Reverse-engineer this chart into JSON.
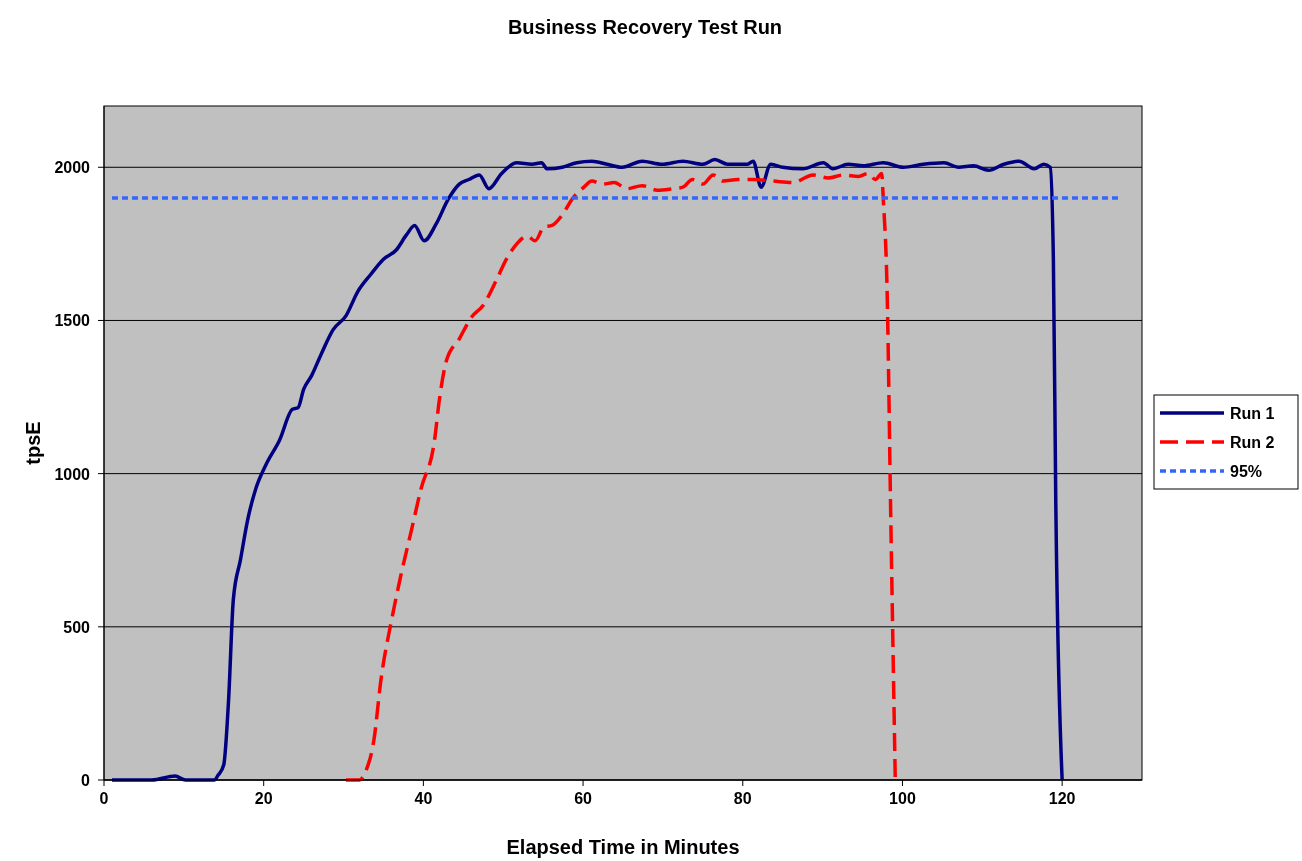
{
  "chart_data": {
    "type": "line",
    "title": "Business Recovery Test Run",
    "xlabel": "Elapsed Time in Minutes",
    "ylabel": "tpsE",
    "xlim": [
      0,
      130
    ],
    "xticks": [
      0,
      20,
      40,
      60,
      80,
      100,
      120
    ],
    "ylim": [
      0,
      2200
    ],
    "yticks": [
      0,
      500,
      1000,
      1500,
      2000
    ],
    "grid": "y",
    "legend": "right",
    "series": [
      {
        "name": "Run 1",
        "color": "#000080",
        "line_style": "solid",
        "x": [
          1,
          6,
          8.9,
          10.2,
          13.8,
          14.3,
          15,
          15.6,
          16.2,
          17.1,
          18,
          19,
          20.3,
          22,
          23.6,
          24.3,
          25,
          26,
          27.2,
          28.7,
          30.3,
          31.8,
          33.4,
          35,
          36.6,
          37.9,
          38.9,
          40.1,
          41.6,
          43.1,
          44.5,
          45.7,
          47,
          48.2,
          49.8,
          51.7,
          53.6,
          54.8,
          55.5,
          57.4,
          59.2,
          61.1,
          63,
          64.9,
          67.4,
          69.9,
          72.5,
          75,
          76.5,
          78.1,
          80.6,
          81.3,
          82.3,
          83.5,
          85,
          87.5,
          90.1,
          91.3,
          93.2,
          95.1,
          97.6,
          100.1,
          102.6,
          105.2,
          107,
          108.9,
          110.8,
          112.7,
          114.6,
          116.5,
          117.7,
          118.5,
          118.9,
          119.2,
          120
        ],
        "values": [
          0,
          0,
          13,
          0,
          0,
          16,
          50,
          260,
          590,
          720,
          850,
          950,
          1030,
          1110,
          1210,
          1215,
          1275,
          1320,
          1390,
          1470,
          1515,
          1595,
          1650,
          1700,
          1730,
          1780,
          1810,
          1760,
          1815,
          1895,
          1945,
          1960,
          1975,
          1930,
          1980,
          2015,
          2010,
          2015,
          1995,
          2000,
          2015,
          2020,
          2010,
          2000,
          2020,
          2010,
          2020,
          2010,
          2025,
          2010,
          2010,
          2020,
          1935,
          2010,
          2000,
          1995,
          2015,
          1995,
          2010,
          2005,
          2015,
          2000,
          2010,
          2015,
          2000,
          2005,
          1990,
          2010,
          2020,
          1995,
          2010,
          2000,
          1700,
          915,
          0
        ]
      },
      {
        "name": "Run 2",
        "color": "#ff0000",
        "line_style": "dashed",
        "x": [
          30.3,
          32,
          32.8,
          33.8,
          34.7,
          36,
          37.2,
          38.5,
          39.7,
          41.4,
          42,
          42.9,
          44.5,
          46,
          47.5,
          49.2,
          50.4,
          51.7,
          53,
          54,
          55.1,
          56.1,
          57.4,
          58.6,
          60.1,
          61.1,
          62.4,
          63.9,
          65.5,
          67.4,
          69.3,
          71.2,
          72.5,
          73.7,
          75,
          76.3,
          77.5,
          79.4,
          81.3,
          83.8,
          86.3,
          88.8,
          90.7,
          92.6,
          94.5,
          95.7,
          96.6,
          97.4,
          97.6,
          98.1,
          98.5,
          99.1
        ],
        "values": [
          0,
          0,
          30,
          130,
          330,
          520,
          670,
          815,
          950,
          1110,
          1240,
          1370,
          1440,
          1510,
          1550,
          1635,
          1700,
          1750,
          1775,
          1760,
          1805,
          1810,
          1845,
          1895,
          1935,
          1955,
          1945,
          1950,
          1930,
          1940,
          1925,
          1930,
          1935,
          1960,
          1945,
          1975,
          1955,
          1960,
          1960,
          1955,
          1950,
          1975,
          1965,
          1975,
          1970,
          1980,
          1960,
          1980,
          1895,
          1570,
          915,
          0
        ]
      },
      {
        "name": "95%",
        "color": "#3366ff",
        "line_style": "dotted",
        "x": [
          1,
          127
        ],
        "values": [
          1900,
          1900
        ]
      }
    ]
  }
}
